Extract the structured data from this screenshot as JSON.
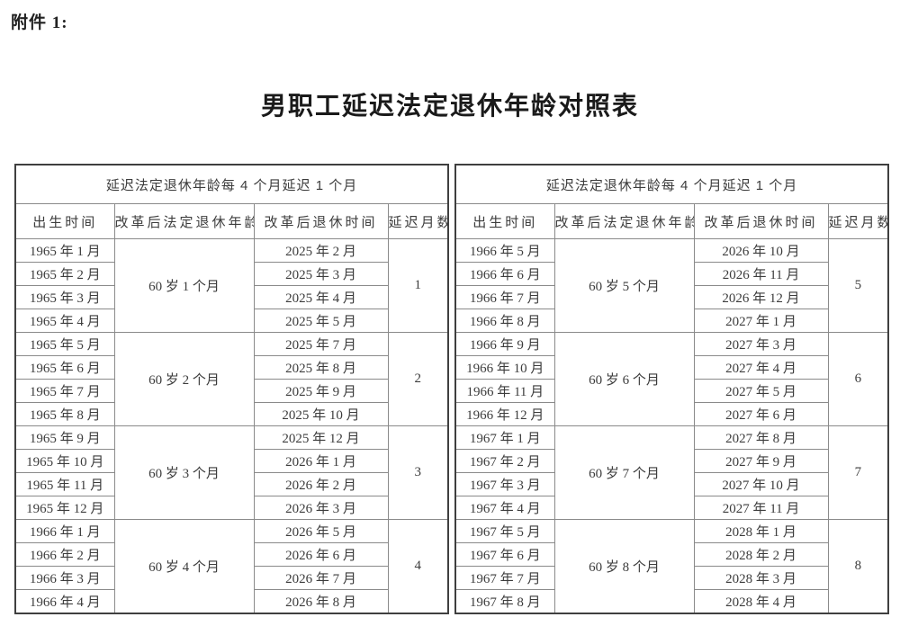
{
  "page": {
    "attachment_label": "附件 1:",
    "title": "男职工延迟法定退休年龄对照表"
  },
  "table": {
    "panels": [
      {
        "group_header": "延迟法定退休年龄每 4 个月延迟 1 个月",
        "columns": [
          "出生时间",
          "改革后法定退休年龄",
          "改革后退休时间",
          "延迟月数"
        ],
        "groups": [
          {
            "age": "60 岁 1 个月",
            "delay": "1",
            "rows": [
              {
                "birth": "1965 年 1 月",
                "retire": "2025 年 2 月"
              },
              {
                "birth": "1965 年 2 月",
                "retire": "2025 年 3 月"
              },
              {
                "birth": "1965 年 3 月",
                "retire": "2025 年 4 月"
              },
              {
                "birth": "1965 年 4 月",
                "retire": "2025 年 5 月"
              }
            ]
          },
          {
            "age": "60 岁 2 个月",
            "delay": "2",
            "rows": [
              {
                "birth": "1965 年 5 月",
                "retire": "2025 年 7 月"
              },
              {
                "birth": "1965 年 6 月",
                "retire": "2025 年 8 月"
              },
              {
                "birth": "1965 年 7 月",
                "retire": "2025 年 9 月"
              },
              {
                "birth": "1965 年 8 月",
                "retire": "2025 年 10 月"
              }
            ]
          },
          {
            "age": "60 岁 3 个月",
            "delay": "3",
            "rows": [
              {
                "birth": "1965 年 9 月",
                "retire": "2025 年 12 月"
              },
              {
                "birth": "1965 年 10 月",
                "retire": "2026 年 1 月"
              },
              {
                "birth": "1965 年 11 月",
                "retire": "2026 年 2 月"
              },
              {
                "birth": "1965 年 12 月",
                "retire": "2026 年 3 月"
              }
            ]
          },
          {
            "age": "60 岁 4 个月",
            "delay": "4",
            "rows": [
              {
                "birth": "1966 年 1 月",
                "retire": "2026 年 5 月"
              },
              {
                "birth": "1966 年 2 月",
                "retire": "2026 年 6 月"
              },
              {
                "birth": "1966 年 3 月",
                "retire": "2026 年 7 月"
              },
              {
                "birth": "1966 年 4 月",
                "retire": "2026 年 8 月"
              }
            ]
          }
        ]
      },
      {
        "group_header": "延迟法定退休年龄每 4 个月延迟 1 个月",
        "columns": [
          "出生时间",
          "改革后法定退休年龄",
          "改革后退休时间",
          "延迟月数"
        ],
        "groups": [
          {
            "age": "60 岁 5 个月",
            "delay": "5",
            "rows": [
              {
                "birth": "1966 年 5 月",
                "retire": "2026 年 10 月"
              },
              {
                "birth": "1966 年 6 月",
                "retire": "2026 年 11 月"
              },
              {
                "birth": "1966 年 7 月",
                "retire": "2026 年 12 月"
              },
              {
                "birth": "1966 年 8 月",
                "retire": "2027 年 1 月"
              }
            ]
          },
          {
            "age": "60 岁 6 个月",
            "delay": "6",
            "rows": [
              {
                "birth": "1966 年 9 月",
                "retire": "2027 年 3 月"
              },
              {
                "birth": "1966 年 10 月",
                "retire": "2027 年 4 月"
              },
              {
                "birth": "1966 年 11 月",
                "retire": "2027 年 5 月"
              },
              {
                "birth": "1966 年 12 月",
                "retire": "2027 年 6 月"
              }
            ]
          },
          {
            "age": "60 岁 7 个月",
            "delay": "7",
            "rows": [
              {
                "birth": "1967 年 1 月",
                "retire": "2027 年 8 月"
              },
              {
                "birth": "1967 年 2 月",
                "retire": "2027 年 9 月"
              },
              {
                "birth": "1967 年 3 月",
                "retire": "2027 年 10 月"
              },
              {
                "birth": "1967 年 4 月",
                "retire": "2027 年 11 月"
              }
            ]
          },
          {
            "age": "60 岁 8 个月",
            "delay": "8",
            "rows": [
              {
                "birth": "1967 年 5 月",
                "retire": "2028 年 1 月"
              },
              {
                "birth": "1967 年 6 月",
                "retire": "2028 年 2 月"
              },
              {
                "birth": "1967 年 7 月",
                "retire": "2028 年 3 月"
              },
              {
                "birth": "1967 年 8 月",
                "retire": "2028 年 4 月"
              }
            ]
          }
        ]
      }
    ]
  }
}
